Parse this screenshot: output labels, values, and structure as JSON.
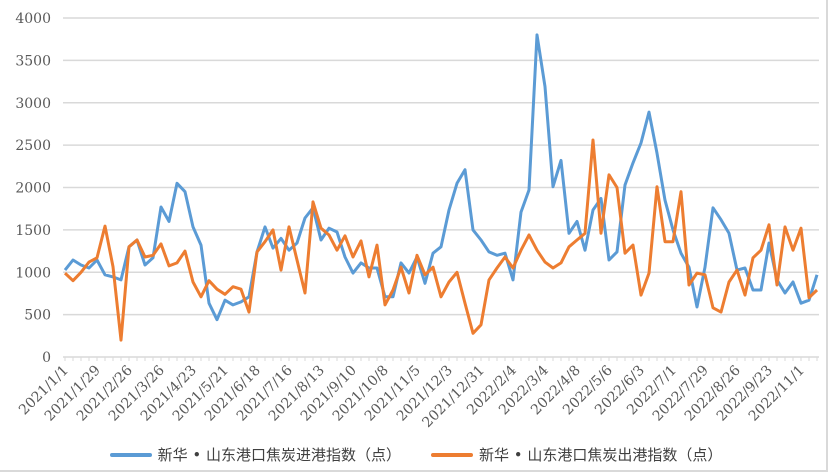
{
  "chart_data": {
    "type": "line",
    "title": "",
    "xlabel": "",
    "ylabel": "",
    "ylim": [
      0,
      4000
    ],
    "yticks": [
      0,
      500,
      1000,
      1500,
      2000,
      2500,
      3000,
      3500,
      4000
    ],
    "grid": true,
    "legend_position": "bottom",
    "tick_every": 4,
    "tick_labels": [
      "2021/1/1",
      "2021/1/29",
      "2021/2/26",
      "2021/3/26",
      "2021/4/23",
      "2021/5/21",
      "2021/6/18",
      "2021/7/16",
      "2021/8/13",
      "2021/9/10",
      "2021/10/8",
      "2021/11/5",
      "2021/12/3",
      "2021/12/31",
      "2022/2/4",
      "2022/3/4",
      "2022/4/8",
      "2022/5/6",
      "2022/6/3",
      "2022/7/1",
      "2022/7/29",
      "2022/8/26",
      "2022/9/23",
      "2022/11/1"
    ],
    "series": [
      {
        "name": "新华 • 山东港口焦炭进港指数（点）",
        "color": "#5b9bd5",
        "values": [
          1025,
          1145,
          1085,
          1050,
          1145,
          970,
          945,
          910,
          1300,
          1380,
          1085,
          1170,
          1770,
          1600,
          2050,
          1950,
          1535,
          1320,
          635,
          440,
          670,
          615,
          650,
          710,
          1240,
          1535,
          1285,
          1400,
          1260,
          1345,
          1640,
          1760,
          1380,
          1520,
          1475,
          1180,
          990,
          1110,
          1050,
          1050,
          710,
          710,
          1110,
          990,
          1180,
          870,
          1225,
          1300,
          1735,
          2050,
          2210,
          1500,
          1380,
          1240,
          1200,
          1225,
          910,
          1710,
          1970,
          3800,
          3190,
          2010,
          2320,
          1460,
          1600,
          1260,
          1735,
          1870,
          1145,
          1240,
          2030,
          2290,
          2525,
          2890,
          2405,
          1850,
          1500,
          1225,
          1060,
          590,
          1060,
          1760,
          1620,
          1460,
          1025,
          1050,
          790,
          790,
          1345,
          910,
          755,
          885,
          635,
          670,
          970
        ]
      },
      {
        "name": "新华 • 山东港口焦炭出港指数（点）",
        "color": "#ed7d31",
        "values": [
          990,
          900,
          1000,
          1120,
          1170,
          1545,
          1065,
          200,
          1300,
          1380,
          1180,
          1200,
          1335,
          1075,
          1110,
          1250,
          885,
          710,
          900,
          800,
          740,
          830,
          800,
          530,
          1240,
          1360,
          1500,
          1025,
          1535,
          1145,
          755,
          1830,
          1520,
          1440,
          1260,
          1430,
          1180,
          1370,
          945,
          1320,
          615,
          790,
          1060,
          755,
          1200,
          970,
          1060,
          710,
          885,
          1000,
          635,
          280,
          380,
          910,
          1050,
          1180,
          1050,
          1260,
          1440,
          1260,
          1120,
          1050,
          1110,
          1300,
          1380,
          1460,
          2560,
          1460,
          2150,
          2000,
          1225,
          1320,
          730,
          990,
          2010,
          1360,
          1360,
          1950,
          850,
          990,
          970,
          580,
          530,
          885,
          1025,
          730,
          1170,
          1260,
          1560,
          850,
          1535,
          1260,
          1520,
          700,
          790
        ]
      }
    ]
  }
}
